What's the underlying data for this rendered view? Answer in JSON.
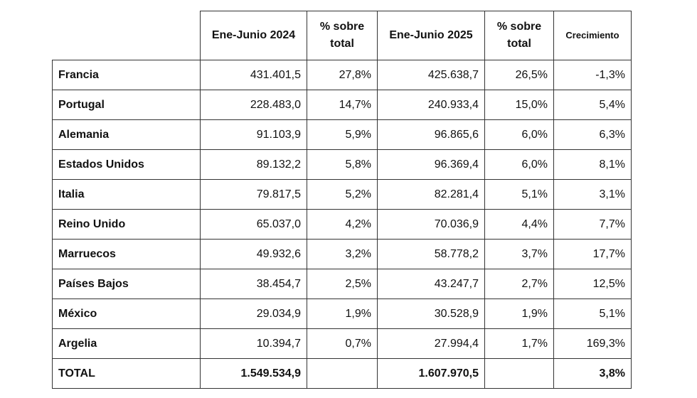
{
  "table": {
    "header": [
      "Ene-Junio 2024",
      "% sobre total",
      "Ene-Junio 2025",
      "% sobre total",
      "Crecimiento"
    ],
    "rows": [
      [
        "Francia",
        "431.401,5",
        "27,8%",
        "425.638,7",
        "26,5%",
        "-1,3%"
      ],
      [
        "Portugal",
        "228.483,0",
        "14,7%",
        "240.933,4",
        "15,0%",
        "5,4%"
      ],
      [
        "Alemania",
        "91.103,9",
        "5,9%",
        "96.865,6",
        "6,0%",
        "6,3%"
      ],
      [
        "Estados Unidos",
        "89.132,2",
        "5,8%",
        "96.369,4",
        "6,0%",
        "8,1%"
      ],
      [
        "Italia",
        "79.817,5",
        "5,2%",
        "82.281,4",
        "5,1%",
        "3,1%"
      ],
      [
        "Reino Unido",
        "65.037,0",
        "4,2%",
        "70.036,9",
        "4,4%",
        "7,7%"
      ],
      [
        "Marruecos",
        "49.932,6",
        "3,2%",
        "58.778,2",
        "3,7%",
        "17,7%"
      ],
      [
        "Países Bajos",
        "38.454,7",
        "2,5%",
        "43.247,7",
        "2,7%",
        "12,5%"
      ],
      [
        "México",
        "29.034,9",
        "1,9%",
        "30.528,9",
        "1,9%",
        "5,1%"
      ],
      [
        "Argelia",
        "10.394,7",
        "0,7%",
        "27.994,4",
        "1,7%",
        "169,3%"
      ]
    ],
    "total": {
      "label": "TOTAL",
      "ene_junio_2024": "1.549.534,9",
      "ene_junio_2025": "1.607.970,5",
      "crecimiento": "3,8%"
    }
  }
}
